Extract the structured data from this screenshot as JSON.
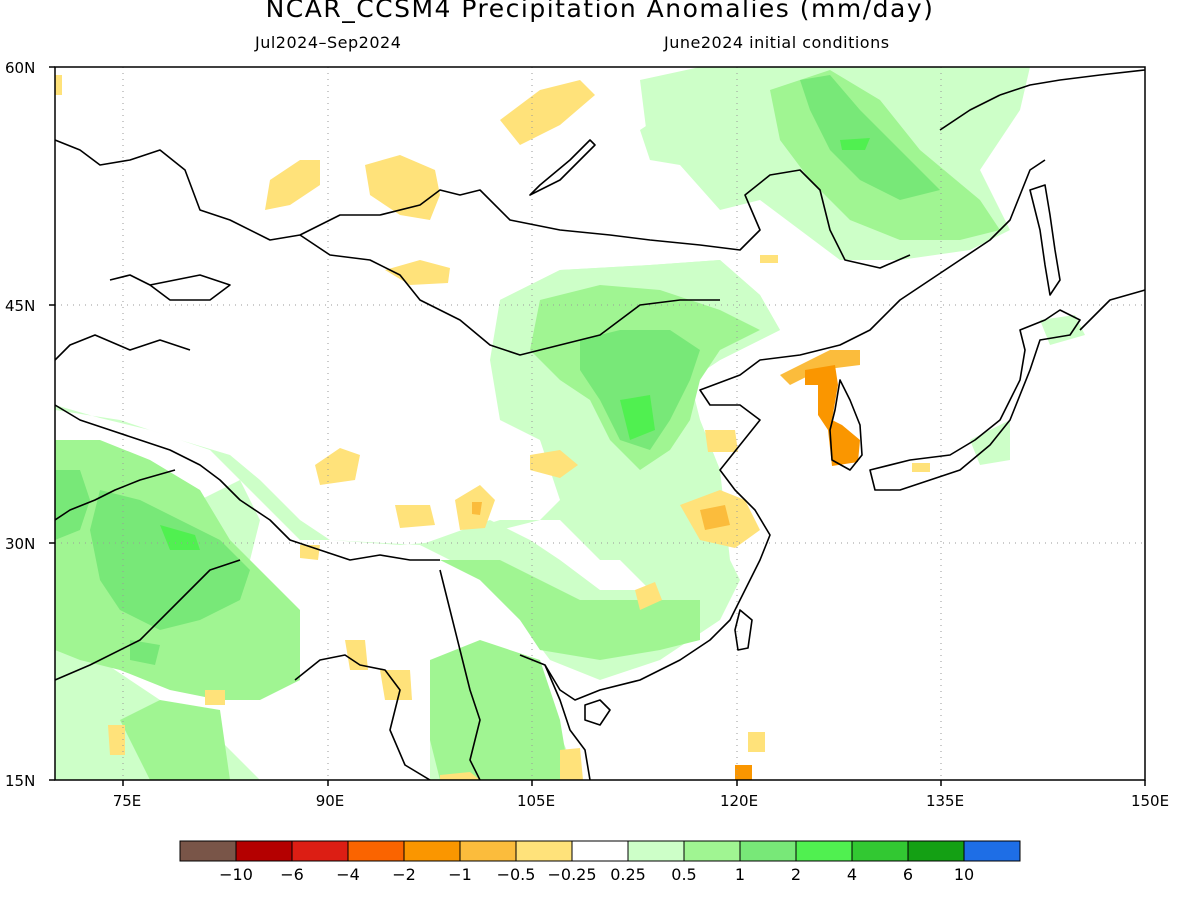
{
  "title": "NCAR_CCSM4 Precipitation Anomalies (mm/day)",
  "subtitle_left": "Jul2024–Sep2024",
  "subtitle_right": "June2024 initial conditions",
  "lat_labels": [
    "60N",
    "45N",
    "30N",
    "15N"
  ],
  "lon_labels": [
    "75E",
    "90E",
    "105E",
    "120E",
    "135E",
    "150E"
  ],
  "map_extent": {
    "lon": [
      70,
      150
    ],
    "lat": [
      15,
      60
    ],
    "lon_ticks": [
      75,
      90,
      105,
      120,
      135,
      150
    ],
    "lat_ticks": [
      15,
      30,
      45,
      60
    ]
  },
  "colorbar": {
    "colors": [
      "#795548",
      "#b40000",
      "#dc1e14",
      "#fa6400",
      "#fa9600",
      "#fbbc3c",
      "#ffe27a",
      "#ffffff",
      "#cdffc8",
      "#a0f592",
      "#78e878",
      "#50f050",
      "#32c832",
      "#14a014",
      "#1e6ee6"
    ],
    "labels": [
      "−10",
      "−6",
      "−4",
      "−2",
      "−1",
      "−0.5",
      "−0.25",
      "0.25",
      "0.5",
      "1",
      "2",
      "4",
      "6",
      "10"
    ]
  }
}
